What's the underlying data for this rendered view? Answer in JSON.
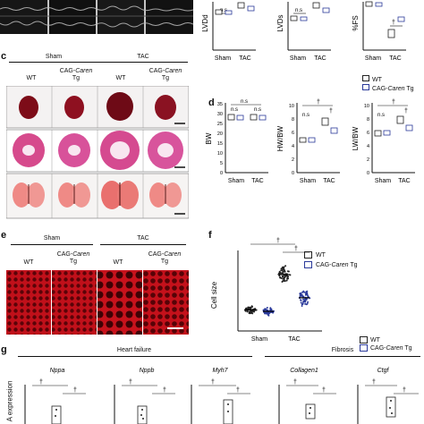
{
  "panel_letters": {
    "c": "c",
    "d": "d",
    "e": "e",
    "f": "f",
    "g": "g"
  },
  "panel_c": {
    "group_sham": "Sham",
    "group_tac": "TAC",
    "wt": "WT",
    "tg_prefix": "CAG-",
    "tg_gene": "Caren",
    "tg_line2": "Tg"
  },
  "panel_e": {
    "group_sham": "Sham",
    "group_tac": "TAC",
    "wt": "WT",
    "tg_prefix": "CAG-",
    "tg_gene": "Caren",
    "tg_line2": "Tg"
  },
  "legend": {
    "wt": "WT",
    "tg_prefix": "CAG-",
    "tg_gene": "Caren",
    "tg_suffix": " Tg",
    "wt_color": "#222222",
    "tg_color": "#2b3a9a"
  },
  "panel_g": {
    "heart_failure": "Heart failure",
    "fibrosis": "Fibrosis",
    "ylabel_fragment": "A expression",
    "genes": [
      "Nppa",
      "Nppb",
      "Myh7",
      "Collagen1",
      "Ctgf"
    ]
  },
  "chart_data": [
    {
      "type": "box",
      "ylabel": "LVDd",
      "categories": [
        "Sham",
        "TAC"
      ],
      "annotations": [
        "n.s"
      ],
      "series": [
        {
          "name": "WT",
          "values": [
            3.8,
            4.6
          ]
        },
        {
          "name": "CAG-Caren Tg",
          "values": [
            3.7,
            4.2
          ]
        }
      ]
    },
    {
      "type": "box",
      "ylabel": "LVDs",
      "categories": [
        "Sham",
        "TAC"
      ],
      "annotations": [
        "n.s"
      ],
      "series": [
        {
          "name": "WT",
          "values": [
            2.6,
            3.8
          ]
        },
        {
          "name": "CAG-Caren Tg",
          "values": [
            2.5,
            3.1
          ]
        }
      ]
    },
    {
      "type": "box",
      "ylabel": "%FS",
      "categories": [
        "Sham",
        "TAC"
      ],
      "annotations": [
        "†"
      ],
      "series": [
        {
          "name": "WT",
          "values": [
            32,
            11
          ]
        },
        {
          "name": "CAG-Caren Tg",
          "values": [
            32,
            22
          ]
        }
      ]
    },
    {
      "type": "box",
      "ylabel": "BW",
      "categories": [
        "Sham",
        "TAC"
      ],
      "yticks": [
        "0",
        "5",
        "10",
        "15",
        "20",
        "25",
        "30",
        "35"
      ],
      "ylim": [
        0,
        35
      ],
      "annotations": [
        "n.s",
        "n.s",
        "n.s"
      ],
      "series": [
        {
          "name": "WT",
          "values": [
            28,
            28
          ]
        },
        {
          "name": "CAG-Caren Tg",
          "values": [
            28,
            28
          ]
        }
      ]
    },
    {
      "type": "box",
      "ylabel": "HW/BW",
      "categories": [
        "Sham",
        "TAC"
      ],
      "yticks": [
        "0",
        "2",
        "4",
        "6",
        "8",
        "10"
      ],
      "ylim": [
        0,
        10
      ],
      "annotations": [
        "†",
        "†",
        "n.s"
      ],
      "series": [
        {
          "name": "WT",
          "values": [
            4.9,
            7.7
          ]
        },
        {
          "name": "CAG-Caren Tg",
          "values": [
            4.9,
            6.2
          ]
        }
      ]
    },
    {
      "type": "box",
      "ylabel": "LW/BW",
      "categories": [
        "Sham",
        "TAC"
      ],
      "yticks": [
        "0",
        "2",
        "4",
        "6",
        "8",
        "10"
      ],
      "ylim": [
        0,
        10
      ],
      "annotations": [
        "†",
        "†",
        "n.s"
      ],
      "series": [
        {
          "name": "WT",
          "values": [
            5.7,
            7.8
          ]
        },
        {
          "name": "CAG-Caren Tg",
          "values": [
            5.8,
            6.6
          ]
        }
      ]
    },
    {
      "type": "scatter",
      "ylabel": "Cell size",
      "categories": [
        "Sham",
        "TAC"
      ],
      "annotations": [
        "†",
        "†"
      ],
      "series": [
        {
          "name": "WT",
          "values": [
            210,
            560
          ]
        },
        {
          "name": "CAG-Caren Tg",
          "values": [
            195,
            330
          ]
        }
      ]
    },
    {
      "type": "box",
      "title": "Nppa",
      "annotations": [
        "†",
        "†"
      ]
    },
    {
      "type": "box",
      "title": "Nppb",
      "annotations": [
        "†",
        "†"
      ]
    },
    {
      "type": "box",
      "title": "Myh7",
      "annotations": [
        "†",
        "†"
      ]
    },
    {
      "type": "box",
      "title": "Collagen1",
      "annotations": [
        "†",
        "†"
      ]
    },
    {
      "type": "box",
      "title": "Ctgf",
      "annotations": [
        "†",
        "†"
      ]
    }
  ]
}
